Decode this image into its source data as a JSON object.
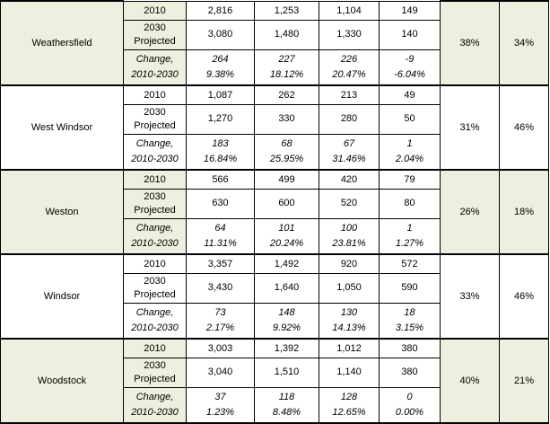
{
  "towns": [
    {
      "name": "Weathersfield",
      "shade": "green",
      "rows": {
        "y2010": {
          "label": "2010",
          "values": [
            "2,816",
            "1,253",
            "1,104",
            "149"
          ]
        },
        "projected": {
          "label_line1": "2030",
          "label_line2": "Projected",
          "values": [
            "3,080",
            "1,480",
            "1,330",
            "140"
          ]
        },
        "change": {
          "label_line1": "Change,",
          "label_line2": "2010-2030",
          "counts": [
            "264",
            "227",
            "226",
            "-9"
          ],
          "percents": [
            "9.38%",
            "18.12%",
            "20.47%",
            "-6.04%"
          ]
        }
      },
      "pct_a": "38%",
      "pct_b": "34%"
    },
    {
      "name": "West Windsor",
      "shade": "white",
      "rows": {
        "y2010": {
          "label": "2010",
          "values": [
            "1,087",
            "262",
            "213",
            "49"
          ]
        },
        "projected": {
          "label_line1": "2030",
          "label_line2": "Projected",
          "values": [
            "1,270",
            "330",
            "280",
            "50"
          ]
        },
        "change": {
          "label_line1": "Change,",
          "label_line2": "2010-2030",
          "counts": [
            "183",
            "68",
            "67",
            "1"
          ],
          "percents": [
            "16.84%",
            "25.95%",
            "31.46%",
            "2.04%"
          ]
        }
      },
      "pct_a": "31%",
      "pct_b": "46%"
    },
    {
      "name": "Weston",
      "shade": "green",
      "rows": {
        "y2010": {
          "label": "2010",
          "values": [
            "566",
            "499",
            "420",
            "79"
          ]
        },
        "projected": {
          "label_line1": "2030",
          "label_line2": "Projected",
          "values": [
            "630",
            "600",
            "520",
            "80"
          ]
        },
        "change": {
          "label_line1": "Change,",
          "label_line2": "2010-2030",
          "counts": [
            "64",
            "101",
            "100",
            "1"
          ],
          "percents": [
            "11.31%",
            "20.24%",
            "23.81%",
            "1.27%"
          ]
        }
      },
      "pct_a": "26%",
      "pct_b": "18%"
    },
    {
      "name": "Windsor",
      "shade": "white",
      "rows": {
        "y2010": {
          "label": "2010",
          "values": [
            "3,357",
            "1,492",
            "920",
            "572"
          ]
        },
        "projected": {
          "label_line1": "2030",
          "label_line2": "Projected",
          "values": [
            "3,430",
            "1,640",
            "1,050",
            "590"
          ]
        },
        "change": {
          "label_line1": "Change,",
          "label_line2": "2010-2030",
          "counts": [
            "73",
            "148",
            "130",
            "18"
          ],
          "percents": [
            "2.17%",
            "9.92%",
            "14.13%",
            "3.15%"
          ]
        }
      },
      "pct_a": "33%",
      "pct_b": "46%"
    },
    {
      "name": "Woodstock",
      "shade": "green",
      "rows": {
        "y2010": {
          "label": "2010",
          "values": [
            "3,003",
            "1,392",
            "1,012",
            "380"
          ]
        },
        "projected": {
          "label_line1": "2030",
          "label_line2": "Projected",
          "values": [
            "3,040",
            "1,510",
            "1,140",
            "380"
          ]
        },
        "change": {
          "label_line1": "Change,",
          "label_line2": "2010-2030",
          "counts": [
            "37",
            "118",
            "128",
            "0"
          ],
          "percents": [
            "1.23%",
            "8.48%",
            "12.65%",
            "0.00%"
          ]
        }
      },
      "pct_a": "40%",
      "pct_b": "21%"
    }
  ],
  "colors": {
    "green_shade": "#ebf1de",
    "white_shade": "#ffffff",
    "border": "#000000"
  }
}
